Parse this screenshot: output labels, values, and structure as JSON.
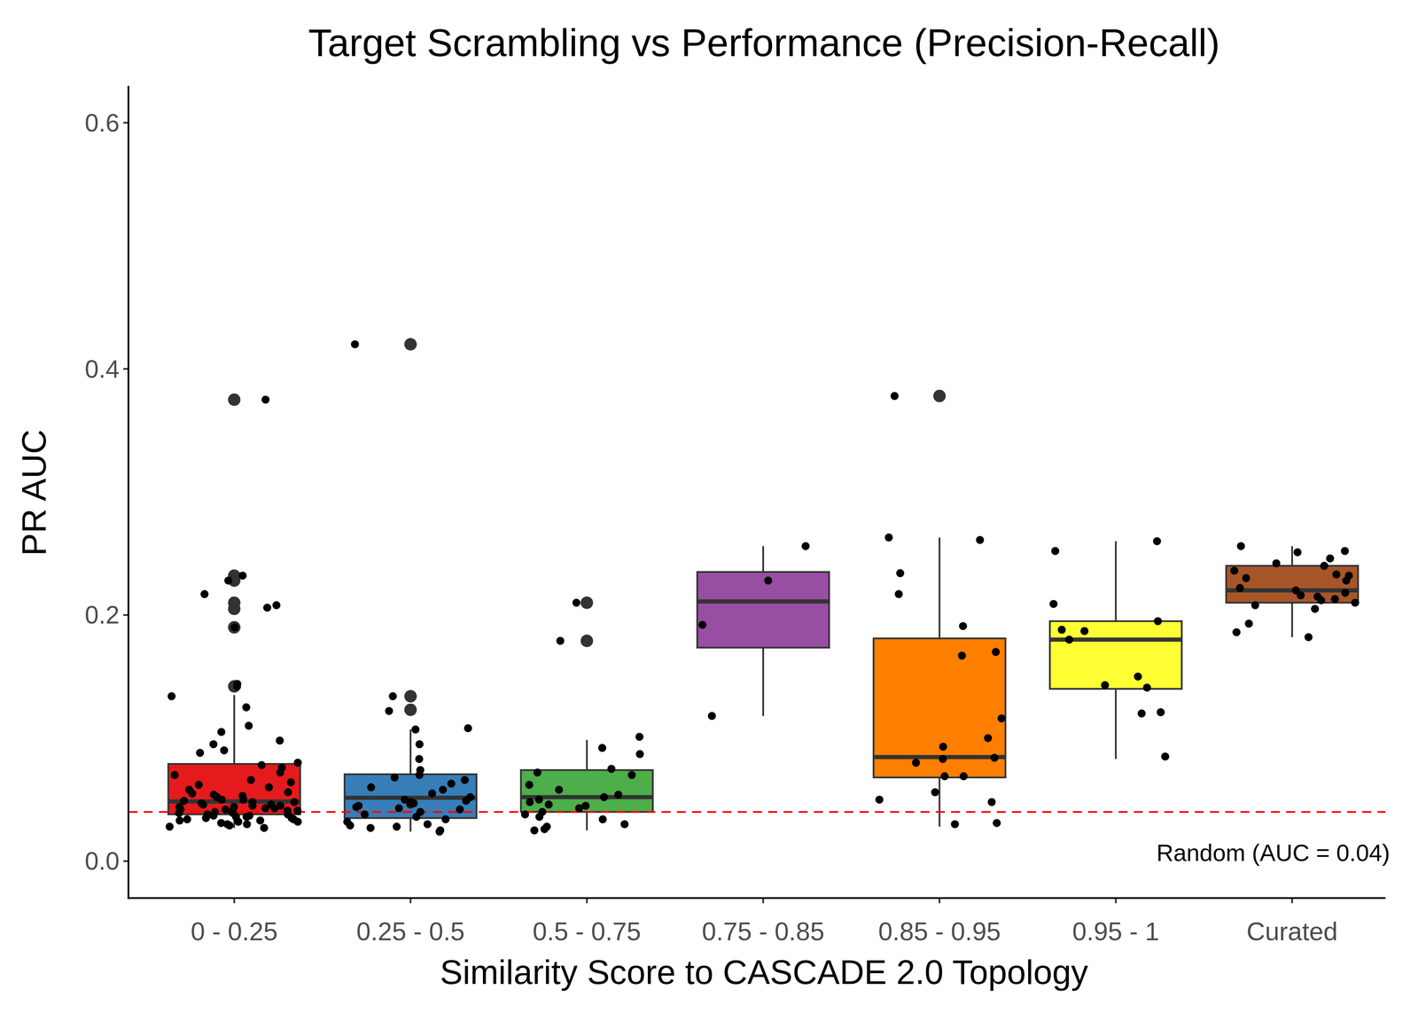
{
  "chart_data": {
    "type": "box",
    "title": "Target Scrambling vs Performance (Precision-Recall)",
    "x_label": "Similarity Score to CASCADE 2.0 Topology",
    "y_label": "PR AUC",
    "categories": [
      "0 - 0.25",
      "0.25 - 0.5",
      "0.5 - 0.75",
      "0.75 - 0.85",
      "0.85 - 0.95",
      "0.95 - 1",
      "Curated"
    ],
    "colors": [
      "#E41A1C",
      "#377EB8",
      "#4DAF4A",
      "#984EA3",
      "#FF7F00",
      "#FFFF33",
      "#A65628"
    ],
    "ylim": [
      -0.03,
      0.63
    ],
    "yticks": [
      {
        "value": 0,
        "label": "0.0"
      },
      0.2,
      0.4,
      0.6
    ],
    "reference_line": {
      "value": 0.04,
      "label": "Random (AUC = 0.04)",
      "color": "#ff0000",
      "line_style": "dashed"
    },
    "boxes": [
      {
        "q1": 0.038,
        "median": 0.0485,
        "q3": 0.079,
        "whisker_low": 0.027,
        "whisker_high": 0.135,
        "outliers": [
          0.375,
          0.232,
          0.228,
          0.21,
          0.205,
          0.19,
          0.142
        ],
        "points": [
          0.375,
          0.232,
          0.228,
          0.217,
          0.208,
          0.206,
          0.19,
          0.144,
          0.142,
          0.134,
          0.125,
          0.11,
          0.105,
          0.098,
          0.095,
          0.09,
          0.088,
          0.08,
          0.078,
          0.076,
          0.072,
          0.07,
          0.066,
          0.064,
          0.062,
          0.06,
          0.058,
          0.056,
          0.055,
          0.054,
          0.053,
          0.052,
          0.05,
          0.05,
          0.049,
          0.048,
          0.048,
          0.047,
          0.046,
          0.046,
          0.045,
          0.045,
          0.044,
          0.044,
          0.043,
          0.043,
          0.042,
          0.042,
          0.041,
          0.041,
          0.04,
          0.04,
          0.039,
          0.039,
          0.038,
          0.038,
          0.037,
          0.037,
          0.036,
          0.036,
          0.035,
          0.035,
          0.034,
          0.034,
          0.033,
          0.033,
          0.032,
          0.032,
          0.031,
          0.03,
          0.03,
          0.029,
          0.028,
          0.027
        ]
      },
      {
        "q1": 0.035,
        "median": 0.0515,
        "q3": 0.0706,
        "whisker_low": 0.024,
        "whisker_high": 0.107,
        "outliers": [
          0.42,
          0.134,
          0.123
        ],
        "points": [
          0.42,
          0.134,
          0.122,
          0.108,
          0.107,
          0.095,
          0.083,
          0.074,
          0.07,
          0.068,
          0.066,
          0.063,
          0.06,
          0.058,
          0.055,
          0.052,
          0.05,
          0.049,
          0.048,
          0.047,
          0.046,
          0.045,
          0.044,
          0.043,
          0.042,
          0.04,
          0.038,
          0.036,
          0.034,
          0.032,
          0.03,
          0.029,
          0.028,
          0.027,
          0.025,
          0.024
        ]
      },
      {
        "q1": 0.04,
        "median": 0.052,
        "q3": 0.074,
        "whisker_low": 0.025,
        "whisker_high": 0.0985,
        "outliers": [
          0.21,
          0.179
        ],
        "points": [
          0.21,
          0.179,
          0.101,
          0.092,
          0.087,
          0.075,
          0.072,
          0.07,
          0.062,
          0.058,
          0.054,
          0.052,
          0.05,
          0.048,
          0.046,
          0.045,
          0.043,
          0.04,
          0.038,
          0.036,
          0.034,
          0.03,
          0.028,
          0.026,
          0.025
        ]
      },
      {
        "q1": 0.1735,
        "median": 0.211,
        "q3": 0.235,
        "whisker_low": 0.118,
        "whisker_high": 0.256,
        "outliers": [],
        "points": [
          0.256,
          0.228,
          0.192,
          0.118
        ]
      },
      {
        "q1": 0.068,
        "median": 0.0846,
        "q3": 0.181,
        "whisker_low": 0.028,
        "whisker_high": 0.263,
        "outliers": [
          0.378
        ],
        "points": [
          0.378,
          0.263,
          0.261,
          0.234,
          0.217,
          0.191,
          0.17,
          0.167,
          0.116,
          0.1,
          0.093,
          0.084,
          0.083,
          0.08,
          0.069,
          0.069,
          0.056,
          0.05,
          0.048,
          0.031,
          0.03
        ]
      },
      {
        "q1": 0.14,
        "median": 0.18,
        "q3": 0.195,
        "whisker_low": 0.083,
        "whisker_high": 0.26,
        "outliers": [],
        "points": [
          0.26,
          0.252,
          0.209,
          0.195,
          0.188,
          0.187,
          0.18,
          0.15,
          0.143,
          0.141,
          0.121,
          0.12,
          0.085
        ]
      },
      {
        "q1": 0.21,
        "median": 0.22,
        "q3": 0.24,
        "whisker_low": 0.182,
        "whisker_high": 0.256,
        "outliers": [],
        "points": [
          0.256,
          0.252,
          0.251,
          0.246,
          0.242,
          0.24,
          0.236,
          0.233,
          0.232,
          0.23,
          0.228,
          0.222,
          0.22,
          0.218,
          0.216,
          0.215,
          0.213,
          0.212,
          0.21,
          0.208,
          0.205,
          0.193,
          0.186,
          0.182
        ]
      }
    ]
  }
}
